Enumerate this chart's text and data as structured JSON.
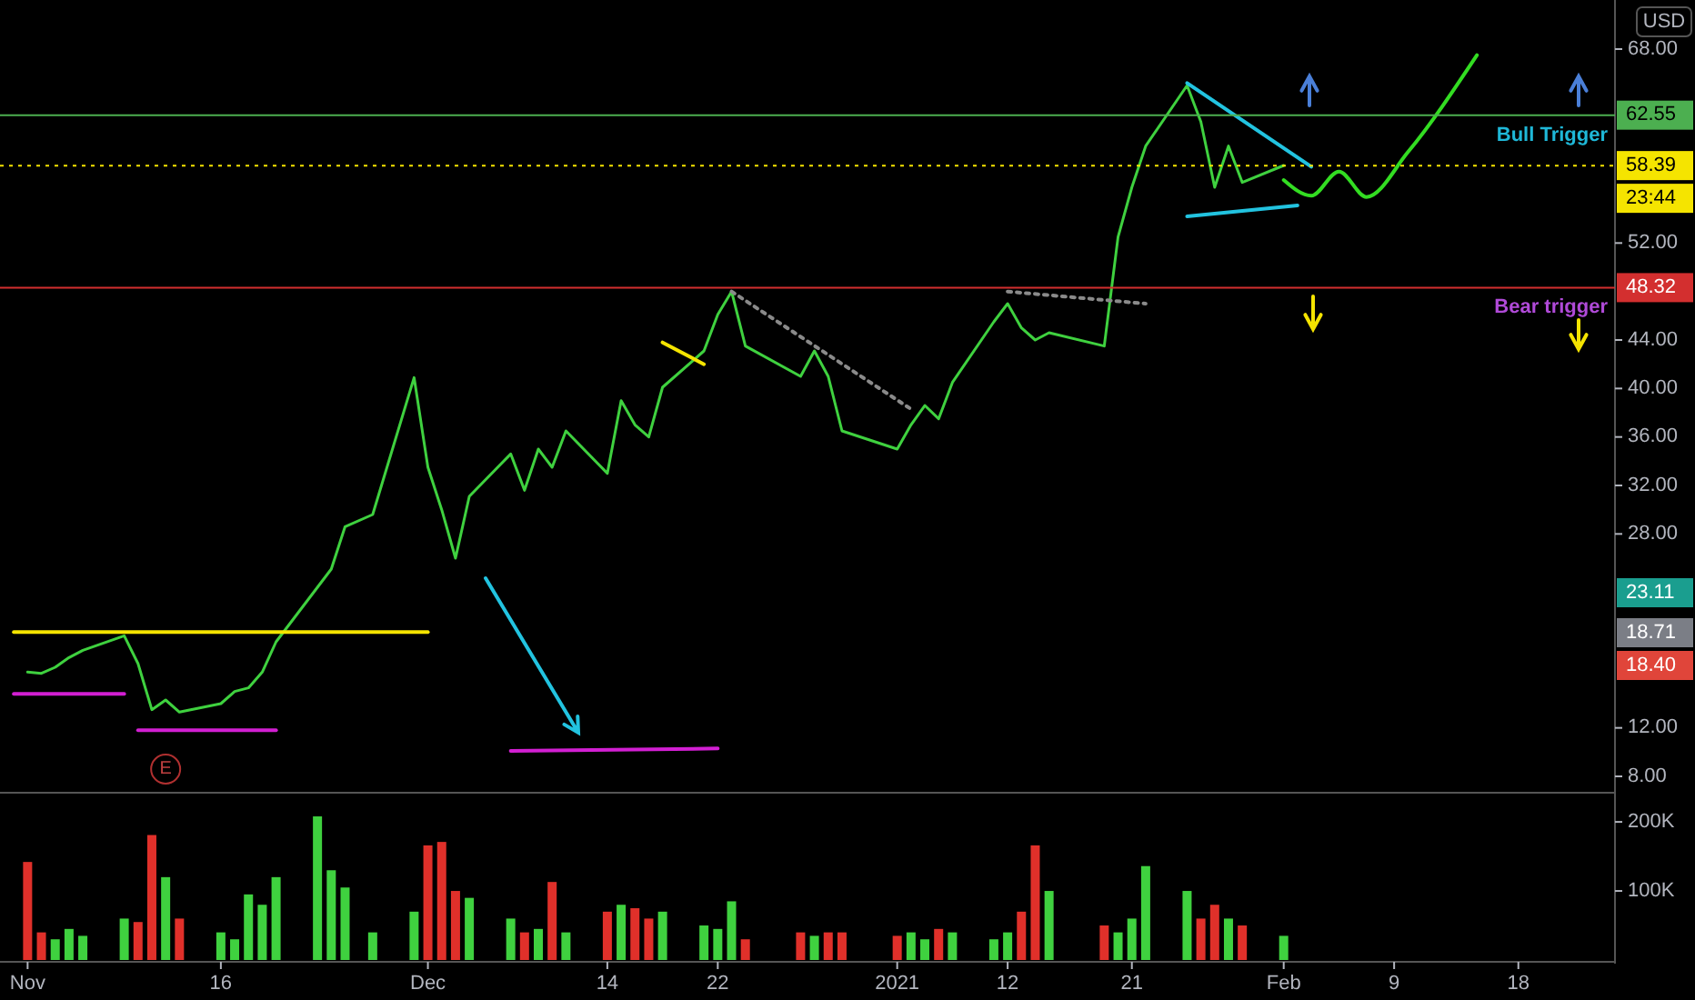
{
  "chart_data": [
    {
      "type": "line",
      "ylabel": "USD",
      "xlim": [
        "2020-10-31",
        "2021-02-25"
      ],
      "ylim": [
        6.8,
        72.05
      ],
      "yticks": [
        {
          "value": 8,
          "label": "8.00"
        },
        {
          "value": 12,
          "label": "12.00"
        },
        {
          "value": 28,
          "label": "28.00"
        },
        {
          "value": 32,
          "label": "32.00"
        },
        {
          "value": 36,
          "label": "36.00"
        },
        {
          "value": 40,
          "label": "40.00"
        },
        {
          "value": 44,
          "label": "44.00"
        },
        {
          "value": 52,
          "label": "52.00"
        },
        {
          "value": 68,
          "label": "68.00"
        }
      ],
      "tick_labels": "y",
      "series": [
        {
          "color": "#3fd13f",
          "x": [
            "2020-11-02",
            "2020-11-03",
            "2020-11-04",
            "2020-11-05",
            "2020-11-06",
            "2020-11-09",
            "2020-11-10",
            "2020-11-11",
            "2020-11-12",
            "2020-11-13",
            "2020-11-16",
            "2020-11-17",
            "2020-11-18",
            "2020-11-19",
            "2020-11-20",
            "2020-11-23",
            "2020-11-24",
            "2020-11-25",
            "2020-11-27",
            "2020-11-30",
            "2020-12-01",
            "2020-12-02",
            "2020-12-03",
            "2020-12-04",
            "2020-12-07",
            "2020-12-08",
            "2020-12-09",
            "2020-12-10",
            "2020-12-11",
            "2020-12-14",
            "2020-12-15",
            "2020-12-16",
            "2020-12-17",
            "2020-12-18",
            "2020-12-21",
            "2020-12-22",
            "2020-12-23",
            "2020-12-24",
            "2020-12-28",
            "2020-12-29",
            "2020-12-30",
            "2020-12-31",
            "2021-01-04",
            "2021-01-05",
            "2021-01-06",
            "2021-01-07",
            "2021-01-08",
            "2021-01-11",
            "2021-01-12",
            "2021-01-13",
            "2021-01-14",
            "2021-01-15",
            "2021-01-19",
            "2021-01-20",
            "2021-01-21",
            "2021-01-22",
            "2021-01-25",
            "2021-01-26",
            "2021-01-27",
            "2021-01-28",
            "2021-01-29",
            "2021-02-01"
          ],
          "values": [
            16.6,
            16.5,
            17,
            17.8,
            18.4,
            19.6,
            17.3,
            13.5,
            14.3,
            13.3,
            14,
            15,
            15.3,
            16.6,
            19.1,
            23.6,
            25.1,
            28.6,
            29.6,
            40.9,
            33.5,
            30,
            26,
            31.1,
            34.6,
            31.6,
            35,
            33.5,
            36.5,
            33,
            39,
            37,
            36,
            40.1,
            43.1,
            46.1,
            48,
            43.5,
            41,
            43.1,
            41,
            36.5,
            35,
            37,
            38.6,
            37.5,
            40.5,
            45.5,
            47,
            45,
            44,
            44.6,
            43.5,
            52.5,
            56.6,
            60,
            65,
            62,
            56.6,
            60,
            57,
            58.4
          ]
        },
        {
          "color": "#f5e400",
          "x": [
            "2020-11-01",
            "2020-12-01"
          ],
          "values": [
            19.9,
            19.9
          ]
        },
        {
          "color": "#d21fd2",
          "x": [
            "2020-11-01",
            "2020-11-09"
          ],
          "values": [
            14.8,
            14.8
          ]
        },
        {
          "color": "#d21fd2",
          "x": [
            "2020-11-10",
            "2020-11-20"
          ],
          "values": [
            11.8,
            11.8
          ]
        },
        {
          "color": "#d21fd2",
          "x": [
            "2020-12-07",
            "2020-12-22"
          ],
          "values": [
            10.1,
            10.3
          ]
        },
        {
          "color": "#f5e400",
          "x": [
            "2020-12-18",
            "2020-12-21"
          ],
          "values": [
            43.8,
            42
          ]
        },
        {
          "color": "#8a8a8a",
          "line_style": "dotted",
          "x": [
            "2020-12-23",
            "2021-01-05"
          ],
          "values": [
            48,
            38.3
          ]
        },
        {
          "color": "#8a8a8a",
          "line_style": "dotted",
          "x": [
            "2021-01-12",
            "2021-01-22"
          ],
          "values": [
            48,
            47
          ]
        },
        {
          "color": "#22c3e0",
          "x": [
            "2021-01-25",
            "2021-02-03"
          ],
          "values": [
            65.2,
            58.3
          ]
        },
        {
          "color": "#22c3e0",
          "x": [
            "2021-01-25",
            "2021-02-02"
          ],
          "values": [
            54.2,
            55.1
          ]
        },
        {
          "color": "#33dd22",
          "x": [
            "2021-02-01",
            "2021-02-03",
            "2021-02-05",
            "2021-02-07",
            "2021-02-10",
            "2021-02-15"
          ],
          "values": [
            57.2,
            55.9,
            57.9,
            55.8,
            59.5,
            67.5
          ]
        }
      ],
      "ref_lines": [
        {
          "axis": "y",
          "value": 62.55,
          "label": "62.55",
          "color": "#4caf50"
        },
        {
          "axis": "y",
          "value": 48.32,
          "label": "48.32",
          "color": "#d32f2f"
        },
        {
          "axis": "y",
          "value": 58.39,
          "label": "58.39",
          "color": "#f5e400",
          "line_style": "dotted"
        }
      ],
      "annotations": [
        "23:44",
        "23.11",
        "18.71",
        "18.40",
        {
          "text": "Bull Trigger",
          "y": 62.55
        },
        {
          "text": "Bear trigger",
          "y": 48.32
        },
        {
          "text": "E",
          "x": "2020-11-12"
        }
      ]
    },
    {
      "type": "bar",
      "xlim": [
        "2020-10-31",
        "2021-02-25"
      ],
      "ylim": [
        0,
        237000
      ],
      "yticks": [
        {
          "value": 100000,
          "label": "100K"
        },
        {
          "value": 200000,
          "label": "200K"
        }
      ],
      "xticks": [
        {
          "value": "2020-11-02",
          "label": "Nov"
        },
        {
          "value": "2020-11-16",
          "label": "16"
        },
        {
          "value": "2020-12-01",
          "label": "Dec"
        },
        {
          "value": "2020-12-14",
          "label": "14"
        },
        {
          "value": "2020-12-22",
          "label": "22"
        },
        {
          "value": "2021-01-04",
          "label": "2021"
        },
        {
          "value": "2021-01-12",
          "label": "12"
        },
        {
          "value": "2021-01-21",
          "label": "21"
        },
        {
          "value": "2021-02-01",
          "label": "Feb"
        },
        {
          "value": "2021-02-09",
          "label": "9"
        },
        {
          "value": "2021-02-18",
          "label": "18"
        }
      ],
      "x": [
        "2020-11-02",
        "2020-11-03",
        "2020-11-04",
        "2020-11-05",
        "2020-11-06",
        "2020-11-09",
        "2020-11-10",
        "2020-11-11",
        "2020-11-12",
        "2020-11-13",
        "2020-11-16",
        "2020-11-17",
        "2020-11-18",
        "2020-11-19",
        "2020-11-20",
        "2020-11-23",
        "2020-11-24",
        "2020-11-25",
        "2020-11-27",
        "2020-11-30",
        "2020-12-01",
        "2020-12-02",
        "2020-12-03",
        "2020-12-04",
        "2020-12-07",
        "2020-12-08",
        "2020-12-09",
        "2020-12-10",
        "2020-12-11",
        "2020-12-14",
        "2020-12-15",
        "2020-12-16",
        "2020-12-17",
        "2020-12-18",
        "2020-12-21",
        "2020-12-22",
        "2020-12-23",
        "2020-12-24",
        "2020-12-28",
        "2020-12-29",
        "2020-12-30",
        "2020-12-31",
        "2021-01-04",
        "2021-01-05",
        "2021-01-06",
        "2021-01-07",
        "2021-01-08",
        "2021-01-11",
        "2021-01-12",
        "2021-01-13",
        "2021-01-14",
        "2021-01-15",
        "2021-01-19",
        "2021-01-20",
        "2021-01-21",
        "2021-01-22",
        "2021-01-25",
        "2021-01-26",
        "2021-01-27",
        "2021-01-28",
        "2021-01-29",
        "2021-02-01"
      ],
      "values": [
        142000,
        40000,
        30000,
        45000,
        35000,
        60000,
        55000,
        181000,
        120000,
        60000,
        40000,
        30000,
        95000,
        80000,
        120000,
        208000,
        130000,
        105000,
        40000,
        70000,
        166000,
        171000,
        100000,
        90000,
        60000,
        40000,
        45000,
        113000,
        40000,
        70000,
        80000,
        75000,
        60000,
        70000,
        50000,
        45000,
        85000,
        30000,
        40000,
        35000,
        40000,
        40000,
        35000,
        40000,
        30000,
        45000,
        40000,
        30000,
        40000,
        70000,
        166000,
        100000,
        50000,
        40000,
        60000,
        136000,
        100000,
        60000,
        80000,
        60000,
        50000,
        35000
      ],
      "colors": [
        "#e0302a",
        "#e0302a",
        "#3fd13f",
        "#3fd13f",
        "#3fd13f",
        "#3fd13f",
        "#e0302a",
        "#e0302a",
        "#3fd13f",
        "#e0302a",
        "#3fd13f",
        "#3fd13f",
        "#3fd13f",
        "#3fd13f",
        "#3fd13f",
        "#3fd13f",
        "#3fd13f",
        "#3fd13f",
        "#3fd13f",
        "#3fd13f",
        "#e0302a",
        "#e0302a",
        "#e0302a",
        "#3fd13f",
        "#3fd13f",
        "#e0302a",
        "#3fd13f",
        "#e0302a",
        "#3fd13f",
        "#e0302a",
        "#3fd13f",
        "#e0302a",
        "#e0302a",
        "#3fd13f",
        "#3fd13f",
        "#3fd13f",
        "#3fd13f",
        "#e0302a",
        "#e0302a",
        "#3fd13f",
        "#e0302a",
        "#e0302a",
        "#e0302a",
        "#3fd13f",
        "#3fd13f",
        "#e0302a",
        "#3fd13f",
        "#3fd13f",
        "#3fd13f",
        "#e0302a",
        "#e0302a",
        "#3fd13f",
        "#e0302a",
        "#3fd13f",
        "#3fd13f",
        "#3fd13f",
        "#3fd13f",
        "#e0302a",
        "#e0302a",
        "#3fd13f",
        "#e0302a",
        "#3fd13f"
      ]
    }
  ]
}
